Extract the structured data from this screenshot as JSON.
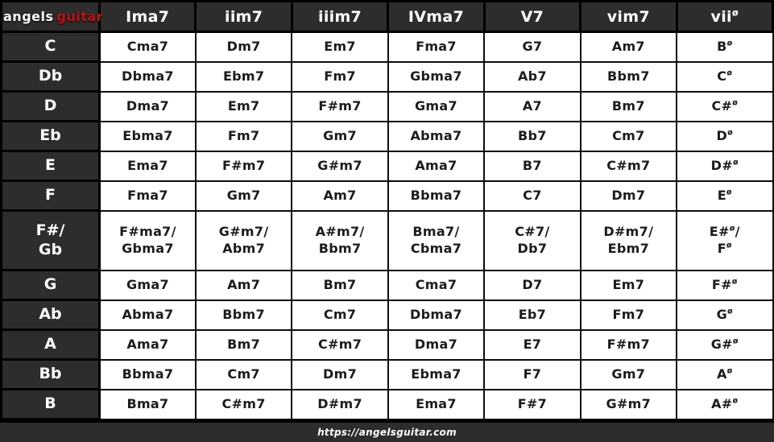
{
  "logo": {
    "angels": "angels",
    "guitar": "guitar"
  },
  "footer": {
    "url": "https://angelsguitar.com"
  },
  "colors": {
    "dark_bg": "#2d2d2d",
    "cell_bg": "#ffffff",
    "border": "#000000",
    "text_dark": "#1c1c1c",
    "text_light": "#ffffff",
    "logo_red": "#c01115"
  },
  "chart_data": {
    "type": "table",
    "columns": [
      "Ima7",
      "iim7",
      "iiim7",
      "IVma7",
      "V7",
      "vim7",
      "viiø"
    ],
    "rows": [
      {
        "key": "C",
        "cells": [
          "Cma7",
          "Dm7",
          "Em7",
          "Fma7",
          "G7",
          "Am7",
          "Bø"
        ]
      },
      {
        "key": "Db",
        "cells": [
          "Dbma7",
          "Ebm7",
          "Fm7",
          "Gbma7",
          "Ab7",
          "Bbm7",
          "Cø"
        ]
      },
      {
        "key": "D",
        "cells": [
          "Dma7",
          "Em7",
          "F#m7",
          "Gma7",
          "A7",
          "Bm7",
          "C#ø"
        ]
      },
      {
        "key": "Eb",
        "cells": [
          "Ebma7",
          "Fm7",
          "Gm7",
          "Abma7",
          "Bb7",
          "Cm7",
          "Dø"
        ]
      },
      {
        "key": "E",
        "cells": [
          "Ema7",
          "F#m7",
          "G#m7",
          "Ama7",
          "B7",
          "C#m7",
          "D#ø"
        ]
      },
      {
        "key": "F",
        "cells": [
          "Fma7",
          "Gm7",
          "Am7",
          "Bbma7",
          "C7",
          "Dm7",
          "Eø"
        ]
      },
      {
        "key": "F#/\nGb",
        "cells": [
          "F#ma7/\nGbma7",
          "G#m7/\nAbm7",
          "A#m7/\nBbm7",
          "Bma7/\nCbma7",
          "C#7/\nDb7",
          "D#m7/\nEbm7",
          "E#ø/\nFø"
        ]
      },
      {
        "key": "G",
        "cells": [
          "Gma7",
          "Am7",
          "Bm7",
          "Cma7",
          "D7",
          "Em7",
          "F#ø"
        ]
      },
      {
        "key": "Ab",
        "cells": [
          "Abma7",
          "Bbm7",
          "Cm7",
          "Dbma7",
          "Eb7",
          "Fm7",
          "Gø"
        ]
      },
      {
        "key": "A",
        "cells": [
          "Ama7",
          "Bm7",
          "C#m7",
          "Dma7",
          "E7",
          "F#m7",
          "G#ø"
        ]
      },
      {
        "key": "Bb",
        "cells": [
          "Bbma7",
          "Cm7",
          "Dm7",
          "Ebma7",
          "F7",
          "Gm7",
          "Aø"
        ]
      },
      {
        "key": "B",
        "cells": [
          "Bma7",
          "C#m7",
          "D#m7",
          "Ema7",
          "F#7",
          "G#m7",
          "A#ø"
        ]
      }
    ]
  }
}
